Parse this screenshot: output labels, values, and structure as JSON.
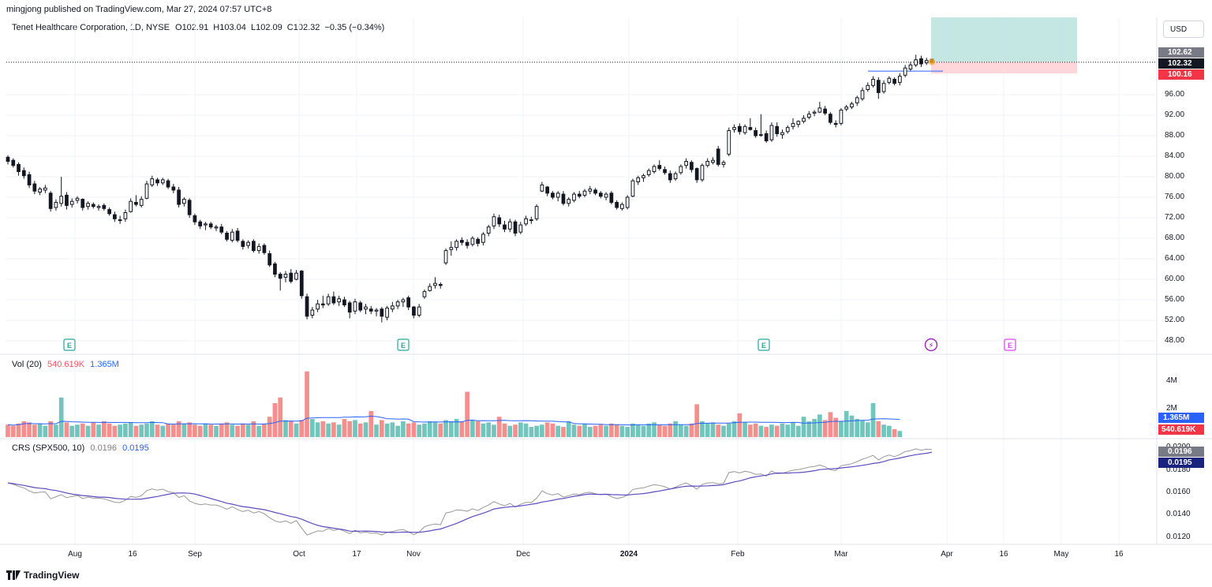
{
  "publisher_line": "mingjong published on TradingView.com, Mar 27, 2024 07:57 UTC+8",
  "symbol_line": "Tenet Healthcare Corporation, 1D, NYSE",
  "ohlc": {
    "o_label": "O",
    "o": "102.91",
    "h_label": "H",
    "h": "103.04",
    "l_label": "L",
    "l": "102.09",
    "c_label": "C",
    "c": "102.32",
    "change": "−0.35 (−0.34%)"
  },
  "currency_button": "USD",
  "price_tags": {
    "high_tag": "102.62",
    "last_tag": "102.32",
    "stop_tag": "100.16"
  },
  "price_axis_ticks": [
    "96.00",
    "92.00",
    "88.00",
    "84.00",
    "80.00",
    "76.00",
    "72.00",
    "68.00",
    "64.00",
    "60.00",
    "56.00",
    "52.00",
    "48.00"
  ],
  "volume_pane": {
    "title": "Vol (20)",
    "val_last": "540.619K",
    "val_ma": "1.365M",
    "axis_ticks": [
      "4M",
      "2M"
    ],
    "tag_ma": "1.365M",
    "tag_last": "540.619K"
  },
  "crs_pane": {
    "title": "CRS (SPX500, 10)",
    "val_a": "0.0196",
    "val_b": "0.0195",
    "axis_ticks": [
      "0.0200",
      "0.0180",
      "0.0160",
      "0.0140",
      "0.0120"
    ],
    "tag_a": "0.0196",
    "tag_b": "0.0195"
  },
  "time_axis": [
    "Aug",
    "16",
    "Sep",
    "Oct",
    "17",
    "Nov",
    "Dec",
    "2024",
    "Feb",
    "Mar",
    "Apr",
    "16",
    "May",
    "16"
  ],
  "event_markers": {
    "earnings_label": "E",
    "dividend_label": "⚡"
  },
  "footer": {
    "logo_text": "TradingView"
  },
  "colors": {
    "up": "#131722",
    "up_fill": "#ffffff",
    "down": "#131722",
    "vol_up": "#26a69a",
    "vol_down": "#ef5350",
    "crs_line": "#5b4cbf",
    "crs_raw": "#999999",
    "target_zone": "#b2dfdb",
    "stop_zone": "#ffcdd2",
    "earnings_green": "#26a69a",
    "earnings_magenta": "#e040fb"
  },
  "chart_data": {
    "type": "candlestick",
    "ylim": [
      46,
      106
    ],
    "candles": [
      {
        "o": 83.8,
        "h": 84.2,
        "l": 82.4,
        "c": 83.0
      },
      {
        "o": 83.2,
        "h": 83.6,
        "l": 81.8,
        "c": 82.2
      },
      {
        "o": 82.4,
        "h": 82.8,
        "l": 80.2,
        "c": 81.0
      },
      {
        "o": 81.2,
        "h": 81.8,
        "l": 79.6,
        "c": 80.2
      },
      {
        "o": 80.4,
        "h": 81.0,
        "l": 77.8,
        "c": 78.4
      },
      {
        "o": 78.6,
        "h": 79.2,
        "l": 76.6,
        "c": 77.2
      },
      {
        "o": 77.0,
        "h": 78.0,
        "l": 76.4,
        "c": 77.6
      },
      {
        "o": 77.4,
        "h": 78.4,
        "l": 76.8,
        "c": 77.8
      },
      {
        "o": 76.8,
        "h": 77.2,
        "l": 73.2,
        "c": 73.8
      },
      {
        "o": 74.0,
        "h": 75.6,
        "l": 73.4,
        "c": 75.0
      },
      {
        "o": 74.8,
        "h": 80.0,
        "l": 74.2,
        "c": 76.2
      },
      {
        "o": 76.4,
        "h": 77.0,
        "l": 73.6,
        "c": 74.4
      },
      {
        "o": 74.6,
        "h": 75.8,
        "l": 74.0,
        "c": 75.2
      },
      {
        "o": 75.4,
        "h": 76.2,
        "l": 74.8,
        "c": 75.8
      },
      {
        "o": 75.6,
        "h": 75.8,
        "l": 73.4,
        "c": 74.0
      },
      {
        "o": 74.2,
        "h": 75.2,
        "l": 73.6,
        "c": 74.8
      },
      {
        "o": 74.6,
        "h": 75.0,
        "l": 73.8,
        "c": 74.2
      },
      {
        "o": 74.0,
        "h": 74.6,
        "l": 73.4,
        "c": 74.2
      },
      {
        "o": 74.4,
        "h": 74.8,
        "l": 73.4,
        "c": 73.8
      },
      {
        "o": 73.6,
        "h": 74.0,
        "l": 72.4,
        "c": 72.8
      },
      {
        "o": 72.6,
        "h": 73.2,
        "l": 71.2,
        "c": 71.8
      },
      {
        "o": 71.6,
        "h": 72.4,
        "l": 70.8,
        "c": 71.6
      },
      {
        "o": 71.8,
        "h": 73.6,
        "l": 71.2,
        "c": 73.0
      },
      {
        "o": 73.2,
        "h": 75.8,
        "l": 73.0,
        "c": 75.2
      },
      {
        "o": 75.0,
        "h": 76.4,
        "l": 74.2,
        "c": 74.6
      },
      {
        "o": 74.4,
        "h": 76.2,
        "l": 74.0,
        "c": 75.6
      },
      {
        "o": 75.8,
        "h": 79.2,
        "l": 75.6,
        "c": 78.6
      },
      {
        "o": 78.4,
        "h": 80.2,
        "l": 78.0,
        "c": 79.6
      },
      {
        "o": 79.4,
        "h": 79.8,
        "l": 78.2,
        "c": 78.8
      },
      {
        "o": 78.8,
        "h": 79.8,
        "l": 78.4,
        "c": 79.4
      },
      {
        "o": 79.2,
        "h": 79.6,
        "l": 77.6,
        "c": 78.0
      },
      {
        "o": 78.0,
        "h": 78.6,
        "l": 76.8,
        "c": 77.4
      },
      {
        "o": 77.4,
        "h": 78.0,
        "l": 74.0,
        "c": 74.6
      },
      {
        "o": 74.8,
        "h": 76.0,
        "l": 74.2,
        "c": 75.6
      },
      {
        "o": 75.4,
        "h": 75.8,
        "l": 72.0,
        "c": 72.6
      },
      {
        "o": 72.4,
        "h": 72.8,
        "l": 70.6,
        "c": 71.2
      },
      {
        "o": 71.2,
        "h": 71.6,
        "l": 69.8,
        "c": 70.4
      },
      {
        "o": 70.6,
        "h": 71.2,
        "l": 69.6,
        "c": 70.8
      },
      {
        "o": 70.8,
        "h": 71.2,
        "l": 69.8,
        "c": 70.2
      },
      {
        "o": 70.0,
        "h": 70.6,
        "l": 69.4,
        "c": 70.2
      },
      {
        "o": 70.2,
        "h": 70.8,
        "l": 68.8,
        "c": 69.2
      },
      {
        "o": 69.0,
        "h": 69.4,
        "l": 67.4,
        "c": 67.8
      },
      {
        "o": 67.6,
        "h": 69.8,
        "l": 67.2,
        "c": 69.2
      },
      {
        "o": 69.4,
        "h": 70.0,
        "l": 67.2,
        "c": 67.6
      },
      {
        "o": 67.4,
        "h": 67.8,
        "l": 65.8,
        "c": 66.4
      },
      {
        "o": 66.6,
        "h": 67.6,
        "l": 66.0,
        "c": 67.2
      },
      {
        "o": 67.4,
        "h": 67.8,
        "l": 65.2,
        "c": 65.6
      },
      {
        "o": 65.6,
        "h": 67.0,
        "l": 65.0,
        "c": 66.4
      },
      {
        "o": 66.6,
        "h": 67.0,
        "l": 64.8,
        "c": 65.2
      },
      {
        "o": 65.0,
        "h": 65.6,
        "l": 62.4,
        "c": 62.8
      },
      {
        "o": 63.0,
        "h": 63.4,
        "l": 60.4,
        "c": 61.0
      },
      {
        "o": 61.0,
        "h": 61.4,
        "l": 57.8,
        "c": 60.2
      },
      {
        "o": 60.4,
        "h": 61.6,
        "l": 59.4,
        "c": 61.0
      },
      {
        "o": 61.2,
        "h": 62.0,
        "l": 59.2,
        "c": 59.6
      },
      {
        "o": 60.0,
        "h": 61.8,
        "l": 59.8,
        "c": 61.2
      },
      {
        "o": 61.6,
        "h": 61.8,
        "l": 56.2,
        "c": 56.8
      },
      {
        "o": 56.6,
        "h": 57.2,
        "l": 52.2,
        "c": 52.8
      },
      {
        "o": 53.0,
        "h": 54.6,
        "l": 52.4,
        "c": 54.0
      },
      {
        "o": 54.2,
        "h": 56.0,
        "l": 53.6,
        "c": 55.2
      },
      {
        "o": 55.2,
        "h": 56.8,
        "l": 54.4,
        "c": 55.0
      },
      {
        "o": 55.2,
        "h": 57.2,
        "l": 54.8,
        "c": 56.6
      },
      {
        "o": 56.6,
        "h": 57.6,
        "l": 55.0,
        "c": 55.4
      },
      {
        "o": 55.6,
        "h": 56.8,
        "l": 54.8,
        "c": 56.2
      },
      {
        "o": 56.0,
        "h": 56.6,
        "l": 54.6,
        "c": 55.0
      },
      {
        "o": 55.4,
        "h": 55.8,
        "l": 52.4,
        "c": 53.6
      },
      {
        "o": 53.8,
        "h": 56.2,
        "l": 53.2,
        "c": 55.6
      },
      {
        "o": 55.4,
        "h": 55.8,
        "l": 53.6,
        "c": 54.0
      },
      {
        "o": 54.2,
        "h": 55.2,
        "l": 53.2,
        "c": 54.6
      },
      {
        "o": 54.2,
        "h": 54.8,
        "l": 53.2,
        "c": 53.8
      },
      {
        "o": 53.8,
        "h": 54.4,
        "l": 52.8,
        "c": 54.0
      },
      {
        "o": 54.2,
        "h": 54.6,
        "l": 51.6,
        "c": 52.8
      },
      {
        "o": 52.6,
        "h": 54.8,
        "l": 52.0,
        "c": 54.4
      },
      {
        "o": 54.2,
        "h": 55.6,
        "l": 53.6,
        "c": 54.8
      },
      {
        "o": 54.8,
        "h": 56.0,
        "l": 54.2,
        "c": 55.6
      },
      {
        "o": 55.6,
        "h": 56.4,
        "l": 54.6,
        "c": 56.0
      },
      {
        "o": 56.4,
        "h": 56.8,
        "l": 54.0,
        "c": 54.6
      },
      {
        "o": 54.6,
        "h": 54.8,
        "l": 52.4,
        "c": 53.0
      },
      {
        "o": 53.0,
        "h": 55.2,
        "l": 52.6,
        "c": 54.6
      },
      {
        "o": 56.6,
        "h": 58.0,
        "l": 56.2,
        "c": 57.6
      },
      {
        "o": 57.8,
        "h": 59.2,
        "l": 57.6,
        "c": 58.6
      },
      {
        "o": 58.8,
        "h": 60.4,
        "l": 58.2,
        "c": 59.2
      },
      {
        "o": 59.0,
        "h": 59.4,
        "l": 58.2,
        "c": 58.8
      },
      {
        "o": 63.2,
        "h": 66.0,
        "l": 62.8,
        "c": 65.6
      },
      {
        "o": 65.8,
        "h": 67.4,
        "l": 64.6,
        "c": 66.2
      },
      {
        "o": 66.2,
        "h": 67.8,
        "l": 65.6,
        "c": 67.4
      },
      {
        "o": 67.6,
        "h": 68.2,
        "l": 66.6,
        "c": 67.2
      },
      {
        "o": 67.2,
        "h": 67.8,
        "l": 66.0,
        "c": 66.6
      },
      {
        "o": 66.8,
        "h": 68.4,
        "l": 66.4,
        "c": 68.0
      },
      {
        "o": 67.8,
        "h": 68.2,
        "l": 66.4,
        "c": 67.0
      },
      {
        "o": 67.2,
        "h": 69.2,
        "l": 66.6,
        "c": 68.8
      },
      {
        "o": 69.0,
        "h": 70.6,
        "l": 68.4,
        "c": 70.2
      },
      {
        "o": 70.4,
        "h": 72.8,
        "l": 69.8,
        "c": 72.2
      },
      {
        "o": 72.0,
        "h": 72.6,
        "l": 70.2,
        "c": 70.8
      },
      {
        "o": 70.6,
        "h": 71.4,
        "l": 69.2,
        "c": 69.8
      },
      {
        "o": 69.8,
        "h": 71.8,
        "l": 69.2,
        "c": 71.2
      },
      {
        "o": 71.2,
        "h": 71.6,
        "l": 68.4,
        "c": 69.0
      },
      {
        "o": 69.2,
        "h": 71.2,
        "l": 68.8,
        "c": 70.6
      },
      {
        "o": 70.8,
        "h": 72.4,
        "l": 70.4,
        "c": 71.8
      },
      {
        "o": 71.6,
        "h": 72.2,
        "l": 70.8,
        "c": 71.6
      },
      {
        "o": 71.8,
        "h": 74.6,
        "l": 71.4,
        "c": 74.2
      },
      {
        "o": 77.2,
        "h": 79.0,
        "l": 77.0,
        "c": 78.4
      },
      {
        "o": 78.0,
        "h": 78.2,
        "l": 76.2,
        "c": 76.8
      },
      {
        "o": 76.8,
        "h": 77.2,
        "l": 75.6,
        "c": 76.0
      },
      {
        "o": 76.0,
        "h": 77.2,
        "l": 75.2,
        "c": 76.8
      },
      {
        "o": 76.6,
        "h": 77.2,
        "l": 74.4,
        "c": 74.8
      },
      {
        "o": 74.8,
        "h": 76.0,
        "l": 74.2,
        "c": 75.6
      },
      {
        "o": 75.4,
        "h": 77.0,
        "l": 75.0,
        "c": 76.6
      },
      {
        "o": 76.6,
        "h": 77.2,
        "l": 75.8,
        "c": 76.2
      },
      {
        "o": 76.4,
        "h": 77.6,
        "l": 76.0,
        "c": 77.2
      },
      {
        "o": 77.2,
        "h": 78.2,
        "l": 76.6,
        "c": 77.6
      },
      {
        "o": 77.4,
        "h": 77.8,
        "l": 76.4,
        "c": 76.8
      },
      {
        "o": 76.8,
        "h": 77.2,
        "l": 75.8,
        "c": 76.2
      },
      {
        "o": 76.0,
        "h": 77.0,
        "l": 75.4,
        "c": 76.6
      },
      {
        "o": 76.8,
        "h": 77.2,
        "l": 74.6,
        "c": 75.0
      },
      {
        "o": 75.0,
        "h": 75.4,
        "l": 73.6,
        "c": 74.0
      },
      {
        "o": 73.8,
        "h": 75.0,
        "l": 73.4,
        "c": 74.6
      },
      {
        "o": 74.0,
        "h": 76.4,
        "l": 73.6,
        "c": 76.0
      },
      {
        "o": 76.2,
        "h": 79.6,
        "l": 76.0,
        "c": 79.2
      },
      {
        "o": 79.0,
        "h": 80.2,
        "l": 78.4,
        "c": 79.8
      },
      {
        "o": 79.8,
        "h": 80.6,
        "l": 79.0,
        "c": 80.2
      },
      {
        "o": 80.4,
        "h": 81.6,
        "l": 80.0,
        "c": 81.2
      },
      {
        "o": 81.0,
        "h": 82.4,
        "l": 80.6,
        "c": 82.0
      },
      {
        "o": 82.2,
        "h": 83.2,
        "l": 81.2,
        "c": 81.6
      },
      {
        "o": 81.4,
        "h": 82.0,
        "l": 80.4,
        "c": 80.8
      },
      {
        "o": 80.6,
        "h": 81.2,
        "l": 78.8,
        "c": 79.4
      },
      {
        "o": 79.6,
        "h": 81.0,
        "l": 79.2,
        "c": 80.6
      },
      {
        "o": 80.8,
        "h": 82.4,
        "l": 80.4,
        "c": 82.0
      },
      {
        "o": 82.2,
        "h": 83.6,
        "l": 81.6,
        "c": 83.0
      },
      {
        "o": 82.8,
        "h": 83.2,
        "l": 80.8,
        "c": 81.4
      },
      {
        "o": 81.6,
        "h": 81.8,
        "l": 78.8,
        "c": 79.4
      },
      {
        "o": 79.4,
        "h": 82.6,
        "l": 79.0,
        "c": 82.2
      },
      {
        "o": 82.2,
        "h": 83.6,
        "l": 81.8,
        "c": 83.0
      },
      {
        "o": 82.8,
        "h": 83.8,
        "l": 82.4,
        "c": 83.2
      },
      {
        "o": 85.4,
        "h": 86.0,
        "l": 82.0,
        "c": 82.4
      },
      {
        "o": 82.4,
        "h": 83.2,
        "l": 81.8,
        "c": 82.8
      },
      {
        "o": 84.4,
        "h": 89.6,
        "l": 84.0,
        "c": 89.0
      },
      {
        "o": 89.2,
        "h": 90.2,
        "l": 88.6,
        "c": 89.6
      },
      {
        "o": 89.8,
        "h": 90.4,
        "l": 88.2,
        "c": 88.8
      },
      {
        "o": 88.6,
        "h": 90.2,
        "l": 88.2,
        "c": 89.8
      },
      {
        "o": 89.6,
        "h": 91.4,
        "l": 89.0,
        "c": 89.2
      },
      {
        "o": 89.0,
        "h": 89.6,
        "l": 87.6,
        "c": 88.0
      },
      {
        "o": 88.2,
        "h": 92.2,
        "l": 87.8,
        "c": 88.2
      },
      {
        "o": 88.4,
        "h": 89.0,
        "l": 86.6,
        "c": 87.0
      },
      {
        "o": 87.2,
        "h": 90.6,
        "l": 86.8,
        "c": 90.0
      },
      {
        "o": 89.8,
        "h": 90.6,
        "l": 87.8,
        "c": 88.4
      },
      {
        "o": 88.2,
        "h": 89.2,
        "l": 87.4,
        "c": 88.6
      },
      {
        "o": 88.8,
        "h": 90.0,
        "l": 88.4,
        "c": 89.6
      },
      {
        "o": 89.8,
        "h": 91.4,
        "l": 89.2,
        "c": 90.4
      },
      {
        "o": 90.2,
        "h": 91.0,
        "l": 89.6,
        "c": 90.8
      },
      {
        "o": 90.8,
        "h": 92.0,
        "l": 90.4,
        "c": 91.4
      },
      {
        "o": 91.6,
        "h": 92.8,
        "l": 91.2,
        "c": 92.2
      },
      {
        "o": 92.4,
        "h": 93.0,
        "l": 91.8,
        "c": 92.6
      },
      {
        "o": 92.6,
        "h": 94.6,
        "l": 92.4,
        "c": 93.4
      },
      {
        "o": 93.2,
        "h": 93.8,
        "l": 92.0,
        "c": 92.4
      },
      {
        "o": 92.2,
        "h": 92.6,
        "l": 90.2,
        "c": 90.6
      },
      {
        "o": 90.4,
        "h": 91.0,
        "l": 89.6,
        "c": 90.2
      },
      {
        "o": 90.4,
        "h": 93.4,
        "l": 90.0,
        "c": 93.0
      },
      {
        "o": 93.2,
        "h": 94.0,
        "l": 92.8,
        "c": 93.6
      },
      {
        "o": 93.6,
        "h": 94.6,
        "l": 93.2,
        "c": 94.2
      },
      {
        "o": 94.4,
        "h": 95.8,
        "l": 93.8,
        "c": 95.4
      },
      {
        "o": 95.2,
        "h": 97.4,
        "l": 94.8,
        "c": 96.8
      },
      {
        "o": 97.0,
        "h": 98.4,
        "l": 96.6,
        "c": 97.8
      },
      {
        "o": 97.8,
        "h": 99.6,
        "l": 97.4,
        "c": 99.0
      },
      {
        "o": 98.8,
        "h": 99.4,
        "l": 95.2,
        "c": 96.4
      },
      {
        "o": 96.6,
        "h": 98.8,
        "l": 96.2,
        "c": 98.2
      },
      {
        "o": 98.4,
        "h": 99.6,
        "l": 98.0,
        "c": 99.2
      },
      {
        "o": 99.0,
        "h": 99.4,
        "l": 97.8,
        "c": 98.2
      },
      {
        "o": 98.4,
        "h": 100.2,
        "l": 97.8,
        "c": 99.6
      },
      {
        "o": 99.8,
        "h": 101.8,
        "l": 99.4,
        "c": 101.2
      },
      {
        "o": 101.0,
        "h": 102.4,
        "l": 100.6,
        "c": 101.8
      },
      {
        "o": 101.8,
        "h": 103.8,
        "l": 101.4,
        "c": 102.8
      },
      {
        "o": 103.0,
        "h": 103.6,
        "l": 101.4,
        "c": 102.0
      },
      {
        "o": 102.2,
        "h": 103.2,
        "l": 101.8,
        "c": 102.67
      },
      {
        "o": 102.91,
        "h": 103.04,
        "l": 102.09,
        "c": 102.32
      }
    ],
    "volume_m": [
      1.1,
      1.0,
      1.2,
      1.4,
      1.3,
      1.1,
      1.2,
      1.0,
      1.4,
      1.1,
      3.5,
      1.3,
      1.0,
      1.1,
      1.2,
      1.0,
      1.3,
      1.1,
      1.4,
      1.2,
      1.0,
      1.1,
      1.2,
      1.3,
      1.0,
      1.1,
      1.2,
      1.4,
      1.1,
      1.0,
      1.2,
      1.1,
      1.4,
      1.2,
      1.3,
      1.1,
      1.0,
      1.2,
      1.1,
      1.0,
      1.2,
      1.3,
      1.1,
      1.0,
      1.2,
      1.1,
      1.4,
      1.0,
      1.2,
      1.8,
      3.0,
      3.5,
      1.5,
      1.4,
      1.2,
      1.5,
      5.8,
      1.6,
      1.3,
      1.4,
      1.2,
      1.3,
      1.1,
      1.6,
      1.4,
      1.5,
      1.2,
      1.3,
      2.3,
      1.1,
      1.5,
      1.2,
      1.3,
      1.0,
      1.4,
      1.2,
      1.3,
      1.1,
      1.2,
      1.4,
      1.3,
      1.2,
      1.5,
      1.4,
      1.6,
      1.4,
      4.0,
      1.5,
      1.4,
      1.2,
      1.3,
      1.1,
      1.8,
      1.2,
      1.0,
      1.1,
      1.3,
      1.2,
      0.9,
      1.0,
      1.1,
      1.3,
      1.2,
      1.0,
      0.9,
      1.4,
      1.1,
      1.0,
      1.2,
      0.9,
      1.0,
      1.1,
      1.0,
      1.2,
      1.1,
      1.0,
      0.9,
      1.2,
      1.1,
      1.0,
      1.2,
      1.3,
      1.1,
      1.0,
      1.2,
      1.4,
      1.1,
      1.0,
      1.2,
      2.9,
      1.4,
      1.2,
      1.3,
      1.1,
      1.0,
      1.2,
      1.4,
      2.1,
      1.3,
      1.1,
      1.2,
      1.0,
      0.9,
      1.1,
      1.0,
      1.2,
      1.1,
      1.3,
      1.0,
      1.8,
      1.4,
      1.6,
      2.0,
      1.5,
      2.2,
      1.7,
      1.4,
      2.3,
      1.9,
      1.6,
      1.5,
      1.3,
      3.0,
      1.4,
      1.1,
      1.0,
      0.7,
      0.54
    ]
  }
}
